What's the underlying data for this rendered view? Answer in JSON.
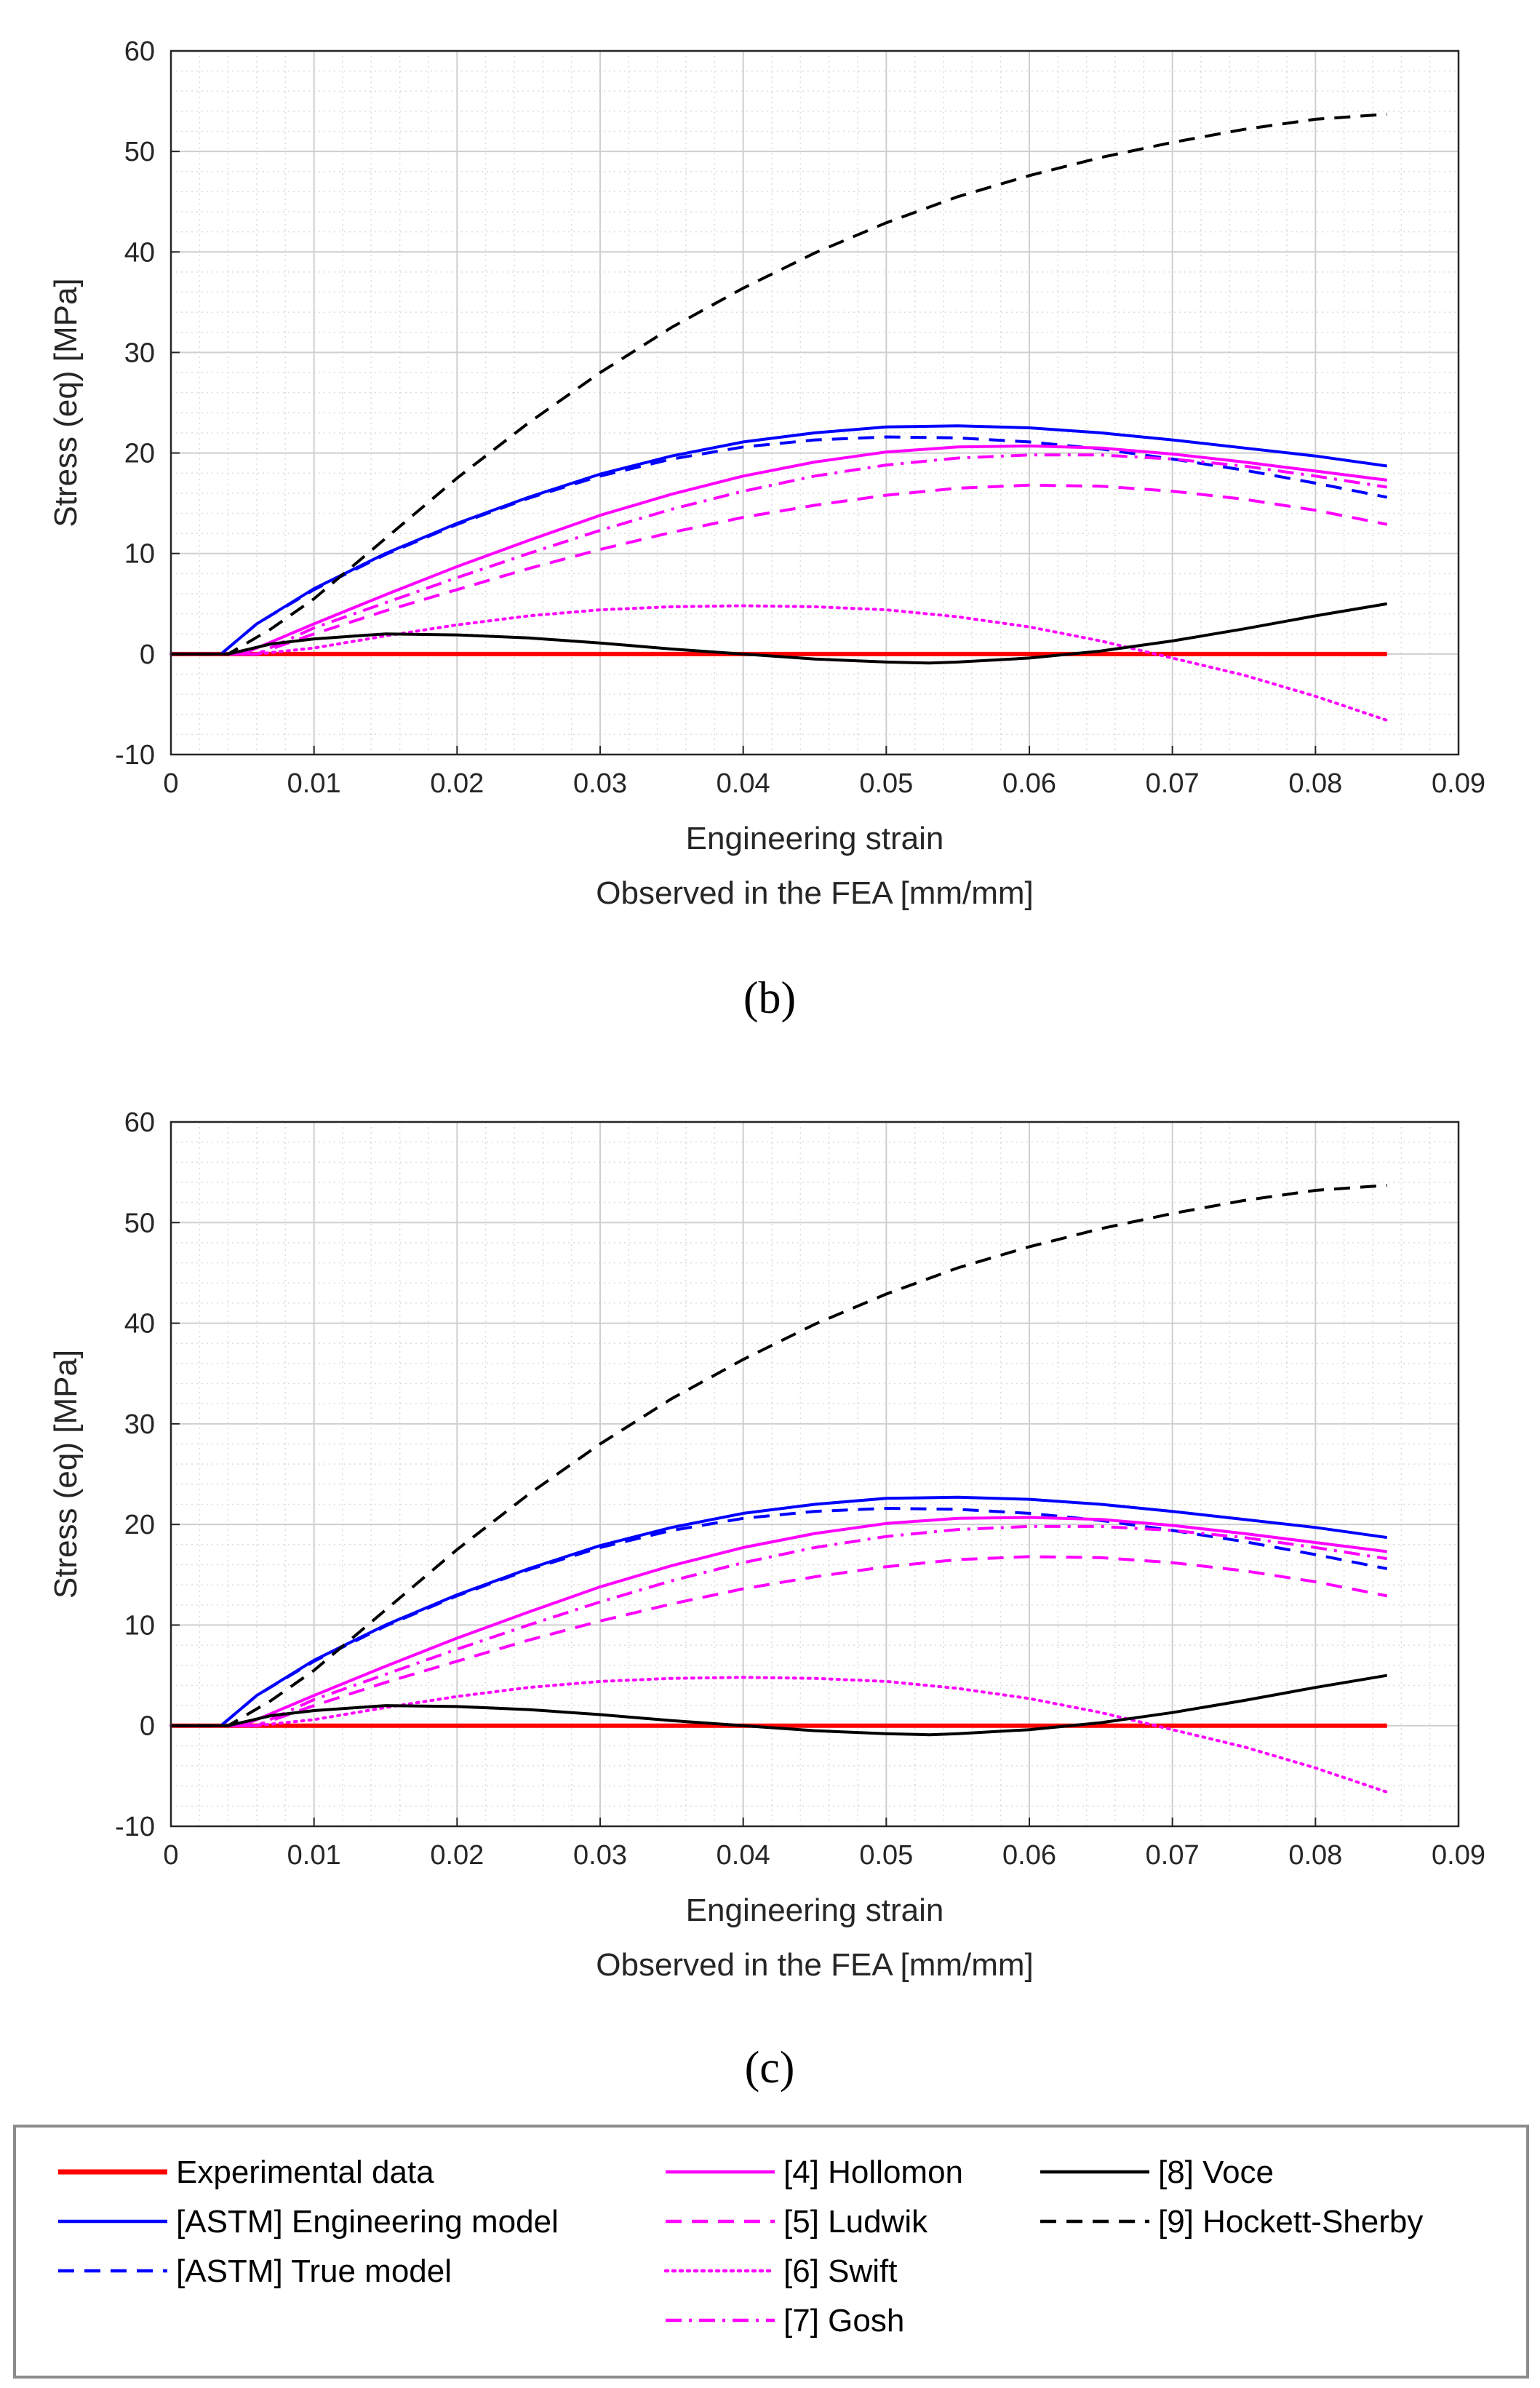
{
  "chart_data": [
    {
      "type": "line",
      "panel": "b",
      "xlabel": "Engineering strain",
      "xlabel2": "Observed in the FEA [mm/mm]",
      "ylabel": "Stress (eq) [MPa]",
      "xlim": [
        0,
        0.09
      ],
      "ylim": [
        -10,
        60
      ],
      "xticks": [
        "0",
        "0.01",
        "0.02",
        "0.03",
        "0.04",
        "0.05",
        "0.06",
        "0.07",
        "0.08",
        "0.09"
      ],
      "yticks": [
        "-10",
        "0",
        "10",
        "20",
        "30",
        "40",
        "50",
        "60"
      ],
      "grid": true,
      "series": [
        {
          "name": "Experimental data",
          "x": [
            0,
            0.085
          ],
          "y": [
            0,
            0
          ]
        },
        {
          "name": "[ASTM] Engineering model",
          "x": [
            0,
            0.0035,
            0.006,
            0.01,
            0.015,
            0.02,
            0.025,
            0.03,
            0.035,
            0.04,
            0.045,
            0.05,
            0.055,
            0.06,
            0.065,
            0.07,
            0.075,
            0.08,
            0.085
          ],
          "y": [
            0,
            0,
            3,
            6.5,
            10,
            13,
            15.6,
            17.9,
            19.7,
            21.1,
            22,
            22.6,
            22.7,
            22.5,
            22,
            21.3,
            20.5,
            19.7,
            18.7
          ]
        },
        {
          "name": "[ASTM] True model",
          "x": [
            0,
            0.0035,
            0.006,
            0.01,
            0.015,
            0.02,
            0.025,
            0.03,
            0.035,
            0.04,
            0.045,
            0.05,
            0.055,
            0.06,
            0.065,
            0.07,
            0.075,
            0.08,
            0.085
          ],
          "y": [
            0,
            0,
            3,
            6.4,
            9.9,
            12.9,
            15.5,
            17.7,
            19.4,
            20.6,
            21.3,
            21.6,
            21.5,
            21.1,
            20.4,
            19.4,
            18.3,
            17,
            15.6
          ]
        },
        {
          "name": "[4] Hollomon",
          "x": [
            0,
            0.005,
            0.01,
            0.015,
            0.02,
            0.025,
            0.03,
            0.035,
            0.04,
            0.045,
            0.05,
            0.055,
            0.06,
            0.065,
            0.07,
            0.075,
            0.08,
            0.085
          ],
          "y": [
            0,
            0,
            3,
            5.9,
            8.7,
            11.3,
            13.8,
            15.9,
            17.7,
            19.1,
            20.1,
            20.6,
            20.7,
            20.5,
            19.9,
            19.1,
            18.2,
            17.3
          ]
        },
        {
          "name": "[5] Ludwik",
          "x": [
            0,
            0.006,
            0.01,
            0.015,
            0.02,
            0.025,
            0.03,
            0.035,
            0.04,
            0.045,
            0.05,
            0.055,
            0.06,
            0.065,
            0.07,
            0.075,
            0.08,
            0.085
          ],
          "y": [
            0,
            0,
            2,
            4.3,
            6.4,
            8.5,
            10.4,
            12.1,
            13.6,
            14.8,
            15.8,
            16.5,
            16.8,
            16.7,
            16.2,
            15.4,
            14.3,
            12.9
          ]
        },
        {
          "name": "[6] Swift",
          "x": [
            0,
            0.006,
            0.01,
            0.015,
            0.02,
            0.025,
            0.03,
            0.035,
            0.04,
            0.045,
            0.05,
            0.055,
            0.06,
            0.065,
            0.07,
            0.075,
            0.08,
            0.085
          ],
          "y": [
            0,
            0,
            0.6,
            1.8,
            2.9,
            3.8,
            4.4,
            4.7,
            4.8,
            4.7,
            4.4,
            3.7,
            2.7,
            1.3,
            -0.4,
            -2.1,
            -4.2,
            -6.6
          ]
        },
        {
          "name": "[7] Gosh",
          "x": [
            0,
            0.006,
            0.01,
            0.015,
            0.02,
            0.025,
            0.03,
            0.035,
            0.04,
            0.045,
            0.05,
            0.055,
            0.06,
            0.065,
            0.07,
            0.075,
            0.08,
            0.085
          ],
          "y": [
            0,
            0,
            2.6,
            5.1,
            7.6,
            10,
            12.3,
            14.4,
            16.2,
            17.7,
            18.8,
            19.5,
            19.8,
            19.8,
            19.4,
            18.7,
            17.7,
            16.6
          ]
        },
        {
          "name": "[8] Voce",
          "x": [
            0,
            0.004,
            0.007,
            0.01,
            0.015,
            0.02,
            0.025,
            0.03,
            0.035,
            0.04,
            0.045,
            0.05,
            0.053,
            0.055,
            0.06,
            0.065,
            0.07,
            0.075,
            0.08,
            0.085
          ],
          "y": [
            0,
            0,
            1,
            1.5,
            2,
            1.9,
            1.6,
            1.1,
            0.5,
            0,
            -0.5,
            -0.8,
            -0.9,
            -0.8,
            -0.4,
            0.3,
            1.3,
            2.5,
            3.8,
            5
          ]
        },
        {
          "name": "[9] Hockett-Sherby",
          "x": [
            0,
            0.004,
            0.007,
            0.01,
            0.015,
            0.02,
            0.025,
            0.03,
            0.035,
            0.04,
            0.045,
            0.05,
            0.055,
            0.06,
            0.065,
            0.07,
            0.075,
            0.08,
            0.085
          ],
          "y": [
            0,
            0,
            2.5,
            5.5,
            11.5,
            17.5,
            23,
            28,
            32.5,
            36.4,
            39.9,
            42.9,
            45.5,
            47.6,
            49.4,
            50.9,
            52.2,
            53.2,
            53.7
          ]
        }
      ]
    },
    {
      "type": "line",
      "panel": "c",
      "xlabel": "Engineering strain",
      "xlabel2": "Observed in the FEA [mm/mm]",
      "ylabel": "Stress (eq) [MPa]",
      "xlim": [
        0,
        0.09
      ],
      "ylim": [
        -10,
        60
      ],
      "xticks": [
        "0",
        "0.01",
        "0.02",
        "0.03",
        "0.04",
        "0.05",
        "0.06",
        "0.07",
        "0.08",
        "0.09"
      ],
      "yticks": [
        "-10",
        "0",
        "10",
        "20",
        "30",
        "40",
        "50",
        "60"
      ],
      "grid": true,
      "series": [
        {
          "name": "Experimental data",
          "x": [
            0,
            0.085
          ],
          "y": [
            0,
            0
          ]
        },
        {
          "name": "[ASTM] Engineering model",
          "x": [
            0,
            0.0035,
            0.006,
            0.01,
            0.015,
            0.02,
            0.025,
            0.03,
            0.035,
            0.04,
            0.045,
            0.05,
            0.055,
            0.06,
            0.065,
            0.07,
            0.075,
            0.08,
            0.085
          ],
          "y": [
            0,
            0,
            3,
            6.5,
            10,
            13,
            15.6,
            17.9,
            19.7,
            21.1,
            22,
            22.6,
            22.7,
            22.5,
            22,
            21.3,
            20.5,
            19.7,
            18.7
          ]
        },
        {
          "name": "[ASTM] True model",
          "x": [
            0,
            0.0035,
            0.006,
            0.01,
            0.015,
            0.02,
            0.025,
            0.03,
            0.035,
            0.04,
            0.045,
            0.05,
            0.055,
            0.06,
            0.065,
            0.07,
            0.075,
            0.08,
            0.085
          ],
          "y": [
            0,
            0,
            3,
            6.4,
            9.9,
            12.9,
            15.5,
            17.7,
            19.4,
            20.6,
            21.3,
            21.6,
            21.5,
            21.1,
            20.4,
            19.4,
            18.3,
            17,
            15.6
          ]
        },
        {
          "name": "[4] Hollomon",
          "x": [
            0,
            0.005,
            0.01,
            0.015,
            0.02,
            0.025,
            0.03,
            0.035,
            0.04,
            0.045,
            0.05,
            0.055,
            0.06,
            0.065,
            0.07,
            0.075,
            0.08,
            0.085
          ],
          "y": [
            0,
            0,
            3,
            5.9,
            8.7,
            11.3,
            13.8,
            15.9,
            17.7,
            19.1,
            20.1,
            20.6,
            20.7,
            20.5,
            19.9,
            19.1,
            18.2,
            17.3
          ]
        },
        {
          "name": "[5] Ludwik",
          "x": [
            0,
            0.006,
            0.01,
            0.015,
            0.02,
            0.025,
            0.03,
            0.035,
            0.04,
            0.045,
            0.05,
            0.055,
            0.06,
            0.065,
            0.07,
            0.075,
            0.08,
            0.085
          ],
          "y": [
            0,
            0,
            2,
            4.3,
            6.4,
            8.5,
            10.4,
            12.1,
            13.6,
            14.8,
            15.8,
            16.5,
            16.8,
            16.7,
            16.2,
            15.4,
            14.3,
            12.9
          ]
        },
        {
          "name": "[6] Swift",
          "x": [
            0,
            0.006,
            0.01,
            0.015,
            0.02,
            0.025,
            0.03,
            0.035,
            0.04,
            0.045,
            0.05,
            0.055,
            0.06,
            0.065,
            0.07,
            0.075,
            0.08,
            0.085
          ],
          "y": [
            0,
            0,
            0.6,
            1.8,
            2.9,
            3.8,
            4.4,
            4.7,
            4.8,
            4.7,
            4.4,
            3.7,
            2.7,
            1.3,
            -0.4,
            -2.1,
            -4.2,
            -6.6
          ]
        },
        {
          "name": "[7] Gosh",
          "x": [
            0,
            0.006,
            0.01,
            0.015,
            0.02,
            0.025,
            0.03,
            0.035,
            0.04,
            0.045,
            0.05,
            0.055,
            0.06,
            0.065,
            0.07,
            0.075,
            0.08,
            0.085
          ],
          "y": [
            0,
            0,
            2.6,
            5.1,
            7.6,
            10,
            12.3,
            14.4,
            16.2,
            17.7,
            18.8,
            19.5,
            19.8,
            19.8,
            19.4,
            18.7,
            17.7,
            16.6
          ]
        },
        {
          "name": "[8] Voce",
          "x": [
            0,
            0.004,
            0.007,
            0.01,
            0.015,
            0.02,
            0.025,
            0.03,
            0.035,
            0.04,
            0.045,
            0.05,
            0.053,
            0.055,
            0.06,
            0.065,
            0.07,
            0.075,
            0.08,
            0.085
          ],
          "y": [
            0,
            0,
            1,
            1.5,
            2,
            1.9,
            1.6,
            1.1,
            0.5,
            0,
            -0.5,
            -0.8,
            -0.9,
            -0.8,
            -0.4,
            0.3,
            1.3,
            2.5,
            3.8,
            5
          ]
        },
        {
          "name": "[9] Hockett-Sherby",
          "x": [
            0,
            0.004,
            0.007,
            0.01,
            0.015,
            0.02,
            0.025,
            0.03,
            0.035,
            0.04,
            0.045,
            0.05,
            0.055,
            0.06,
            0.065,
            0.07,
            0.075,
            0.08,
            0.085
          ],
          "y": [
            0,
            0,
            2.5,
            5.5,
            11.5,
            17.5,
            23,
            28,
            32.5,
            36.4,
            39.9,
            42.9,
            45.5,
            47.6,
            49.4,
            50.9,
            52.2,
            53.2,
            53.7
          ]
        }
      ]
    }
  ],
  "panel_labels": [
    "(b)",
    "(c)"
  ],
  "legend": {
    "entries": [
      {
        "label": "Experimental data",
        "color": "#ff0000",
        "style": "solid"
      },
      {
        "label": "[ASTM] Engineering model",
        "color": "#0000ff",
        "style": "solid"
      },
      {
        "label": "[ASTM] True model",
        "color": "#0000ff",
        "style": "dashed"
      },
      {
        "label": "[4] Hollomon",
        "color": "#ff00ff",
        "style": "solid"
      },
      {
        "label": "[5] Ludwik",
        "color": "#ff00ff",
        "style": "dashed"
      },
      {
        "label": "[6] Swift",
        "color": "#ff00ff",
        "style": "dotted"
      },
      {
        "label": "[7] Gosh",
        "color": "#ff00ff",
        "style": "dashdot"
      },
      {
        "label": "[8] Voce",
        "color": "#000000",
        "style": "solid"
      },
      {
        "label": "[9] Hockett-Sherby",
        "color": "#000000",
        "style": "dashed"
      }
    ]
  }
}
